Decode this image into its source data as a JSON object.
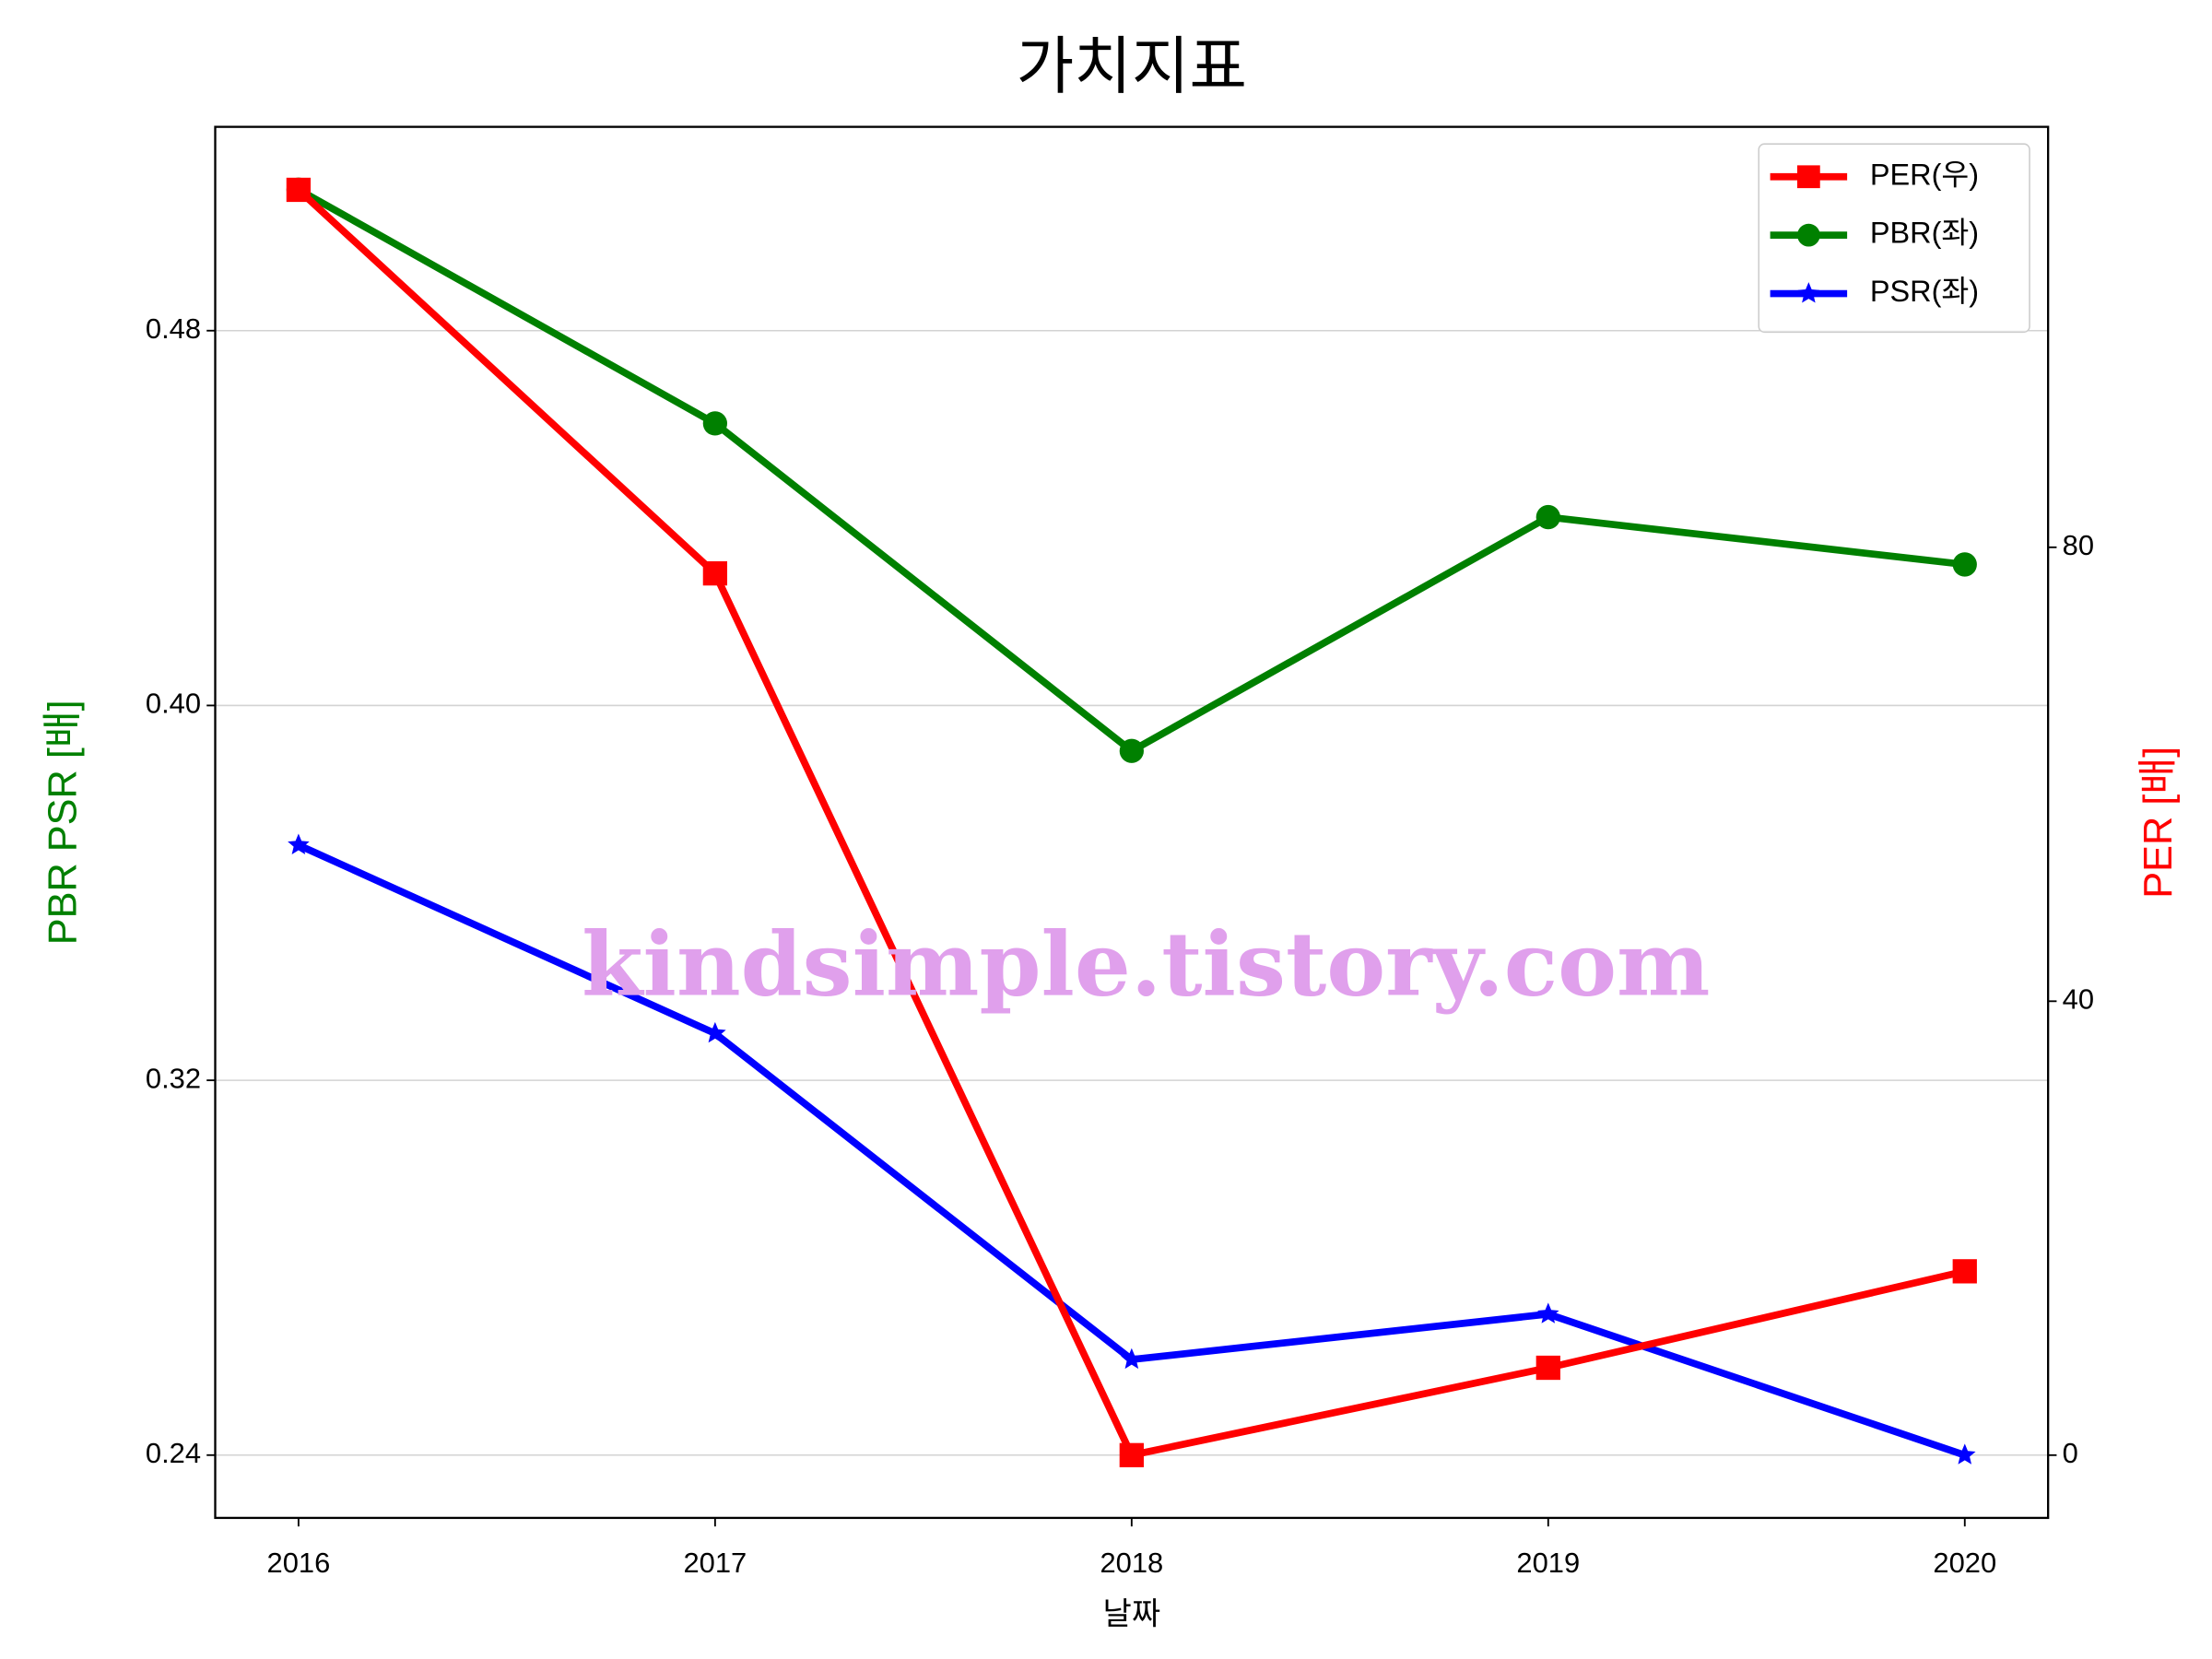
{
  "chart_data": {
    "type": "line",
    "title": "가치지표",
    "xlabel": "날짜",
    "ylabel": "PBR PSR [배]",
    "ylabel_color": "green",
    "y2label": "PER [배]",
    "y2label_color": "red",
    "annotation": "kindsimple.tistory.com",
    "x": [
      2016,
      2017,
      2018,
      2019,
      2020
    ],
    "xlim": [
      2015.8,
      2020.2
    ],
    "xticks": [
      2016,
      2017,
      2018,
      2019,
      2020
    ],
    "ylim": [
      0.2266,
      0.5235
    ],
    "yticks": [
      {
        "value": 0.24,
        "label": "0.24"
      },
      {
        "value": 0.32,
        "label": "0.32"
      },
      {
        "value": 0.4,
        "label": "0.40"
      },
      {
        "value": 0.48,
        "label": "0.48"
      }
    ],
    "y2lim": [
      -5.53,
      117.05
    ],
    "y2ticks": [
      0,
      40,
      80
    ],
    "grid": true,
    "legend": "upper right",
    "series": [
      {
        "name": "PER(우)",
        "color": "red",
        "marker": "square",
        "axis": "y2",
        "values": [
          111.5,
          77.7,
          0,
          7.7,
          16.2
        ]
      },
      {
        "name": "PBR(좌)",
        "color": "green",
        "marker": "circle",
        "values": [
          0.5101,
          0.4602,
          0.3903,
          0.4402,
          0.4301
        ]
      },
      {
        "name": "PSR(좌)",
        "color": "blue",
        "marker": "star",
        "values": [
          0.3702,
          0.33,
          0.2604,
          0.2701,
          0.24
        ]
      }
    ]
  }
}
